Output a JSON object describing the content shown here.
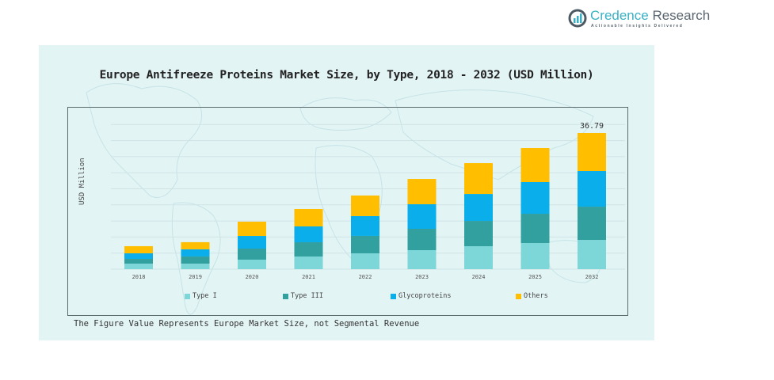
{
  "logo": {
    "name_part1": "Credence",
    "name_part2": " Research",
    "tagline": "Actionable Insights Delivered"
  },
  "footnote": "The Figure Value Represents Europe Market Size, not Segmental Revenue",
  "chart_data": {
    "type": "bar",
    "stacked": true,
    "title": "Europe Antifreeze Proteins Market Size, by Type, 2018 - 2032 (USD Million)",
    "xlabel": "",
    "ylabel": "USD Million",
    "ylim": [
      0,
      40
    ],
    "grid": true,
    "legend_position": "bottom",
    "categories": [
      "2018",
      "2019",
      "2020",
      "2021",
      "2022",
      "2023",
      "2024",
      "2025",
      "2032"
    ],
    "series": [
      {
        "name": "Type I",
        "color": "#7dd6d8",
        "values": [
          1.5,
          1.5,
          2.57,
          3.42,
          4.28,
          5.13,
          6.2,
          7.06,
          7.91
        ]
      },
      {
        "name": "Type III",
        "color": "#33a0a0",
        "values": [
          1.28,
          1.93,
          2.99,
          3.85,
          4.71,
          5.78,
          6.84,
          7.91,
          8.98
        ]
      },
      {
        "name": "Glycoproteins",
        "color": "#0aaeea",
        "values": [
          1.5,
          1.93,
          3.42,
          4.28,
          5.35,
          6.63,
          7.27,
          8.56,
          9.63
        ]
      },
      {
        "name": "Others",
        "color": "#ffbe00",
        "values": [
          1.93,
          1.93,
          3.85,
          4.71,
          5.56,
          6.84,
          8.34,
          9.2,
          10.27
        ]
      }
    ],
    "annotations": [
      {
        "category": "2032",
        "text": "36.79"
      }
    ]
  }
}
